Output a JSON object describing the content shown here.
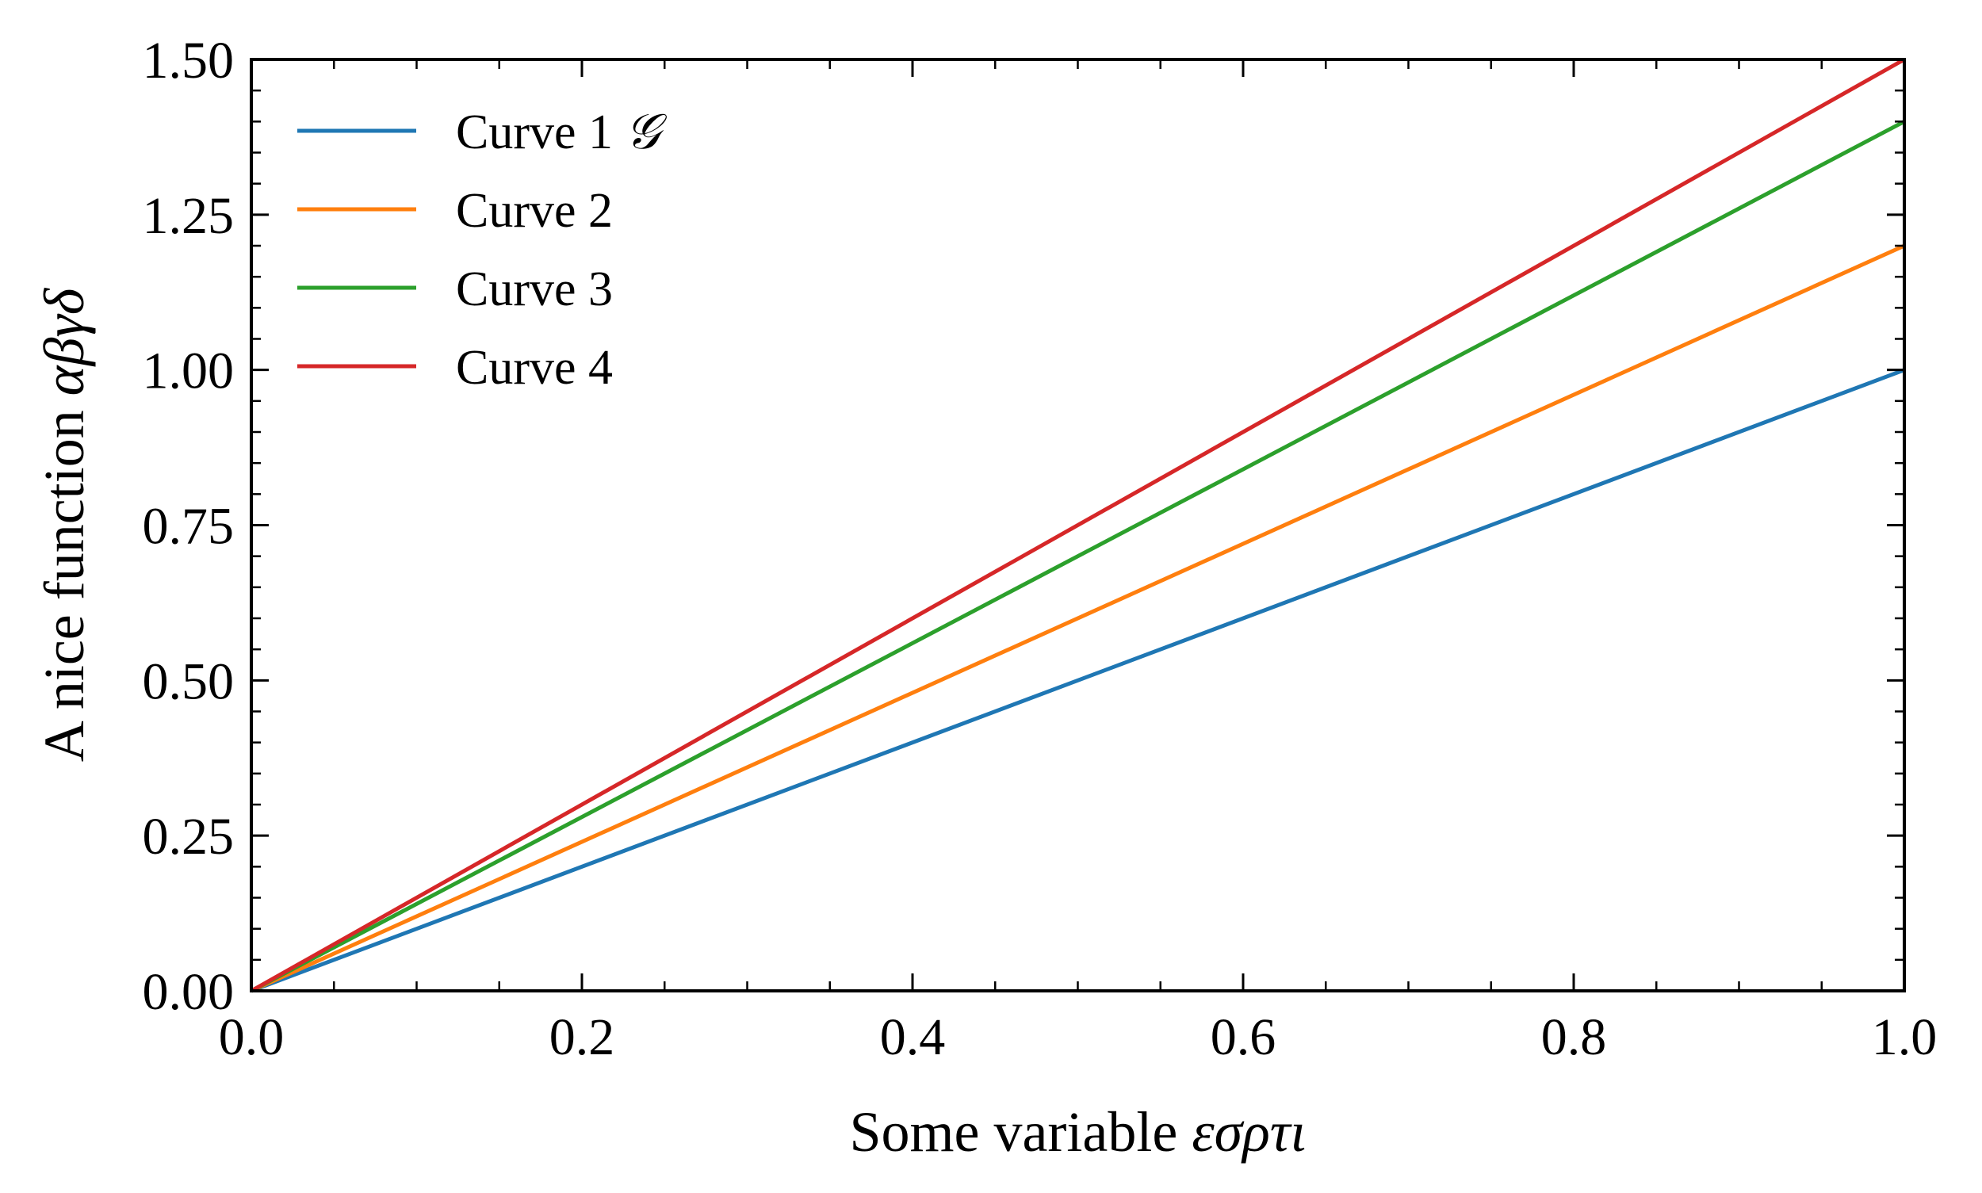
{
  "chart_data": {
    "type": "line",
    "title": "",
    "xlabel": "Some variable",
    "xlabel_math": "εσρτι",
    "ylabel": "A nice function",
    "ylabel_math": "αβγδ",
    "xlim": [
      0.0,
      1.0
    ],
    "ylim": [
      0.0,
      1.5
    ],
    "x_ticks": [
      0.0,
      0.2,
      0.4,
      0.6,
      0.8,
      1.0
    ],
    "x_tick_labels": [
      "0.0",
      "0.2",
      "0.4",
      "0.6",
      "0.8",
      "1.0"
    ],
    "y_ticks": [
      0.0,
      0.25,
      0.5,
      0.75,
      1.0,
      1.25,
      1.5
    ],
    "y_tick_labels": [
      "0.00",
      "0.25",
      "0.50",
      "0.75",
      "1.00",
      "1.25",
      "1.50"
    ],
    "x_minor_step": 0.05,
    "y_minor_step": 0.05,
    "grid": false,
    "ticks_direction": "in",
    "legend_position": "top-left",
    "x": [
      0.0,
      1.0
    ],
    "series": [
      {
        "name": "Curve 1",
        "name_math": "𝒢",
        "color": "#1f77b4",
        "values": [
          0.0,
          1.0
        ]
      },
      {
        "name": "Curve 2",
        "color": "#ff7f0e",
        "values": [
          0.0,
          1.2
        ]
      },
      {
        "name": "Curve 3",
        "color": "#2ca02c",
        "values": [
          0.0,
          1.4
        ]
      },
      {
        "name": "Curve 4",
        "color": "#d62728",
        "values": [
          0.0,
          1.5
        ]
      }
    ]
  }
}
